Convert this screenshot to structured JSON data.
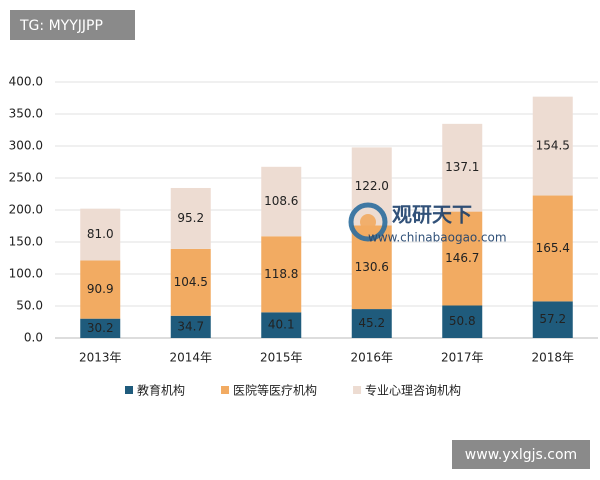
{
  "chart_data": {
    "type": "stacked_bar",
    "categories": [
      "2013年",
      "2014年",
      "2015年",
      "2016年",
      "2017年",
      "2018年"
    ],
    "series": [
      {
        "name": "教育机构",
        "color": "#1f5b7c",
        "values": [
          30.2,
          34.7,
          40.1,
          45.2,
          50.8,
          57.2
        ],
        "value_labels": [
          "30.2",
          "34.7",
          "40.1",
          "45.2",
          "50.8",
          "57.2"
        ]
      },
      {
        "name": "医院等医疗机构",
        "color": "#f2ab62",
        "values": [
          90.9,
          104.5,
          118.8,
          130.6,
          146.7,
          165.4
        ],
        "value_labels": [
          "90.9",
          "104.5",
          "118.8",
          "130.6",
          "146.7",
          "165.4"
        ]
      },
      {
        "name": "专业心理咨询机构",
        "color": "#eddcd2",
        "values": [
          81.0,
          95.2,
          108.6,
          122.0,
          137.1,
          154.5
        ],
        "value_labels": [
          "81.0",
          "95.2",
          "108.6",
          "122.0",
          "137.1",
          "154.5"
        ]
      }
    ],
    "ylim": [
      0,
      400
    ],
    "yticks": [
      {
        "value": 0,
        "label": "0.0"
      },
      {
        "value": 50,
        "label": "50.0"
      },
      {
        "value": 100,
        "label": "100.0"
      },
      {
        "value": 150,
        "label": "150.0"
      },
      {
        "value": 200,
        "label": "200.0"
      },
      {
        "value": 250,
        "label": "250.0"
      },
      {
        "value": 300,
        "label": "300.0"
      },
      {
        "value": 350,
        "label": "350.0"
      },
      {
        "value": 400,
        "label": "400.0"
      }
    ],
    "grid": true
  },
  "overlays": {
    "tag": "TG: MYYJJPP",
    "site": "www.yxlgjs.com",
    "logo_title": "观研天下",
    "logo_url": "www.chinabaogao.com"
  }
}
